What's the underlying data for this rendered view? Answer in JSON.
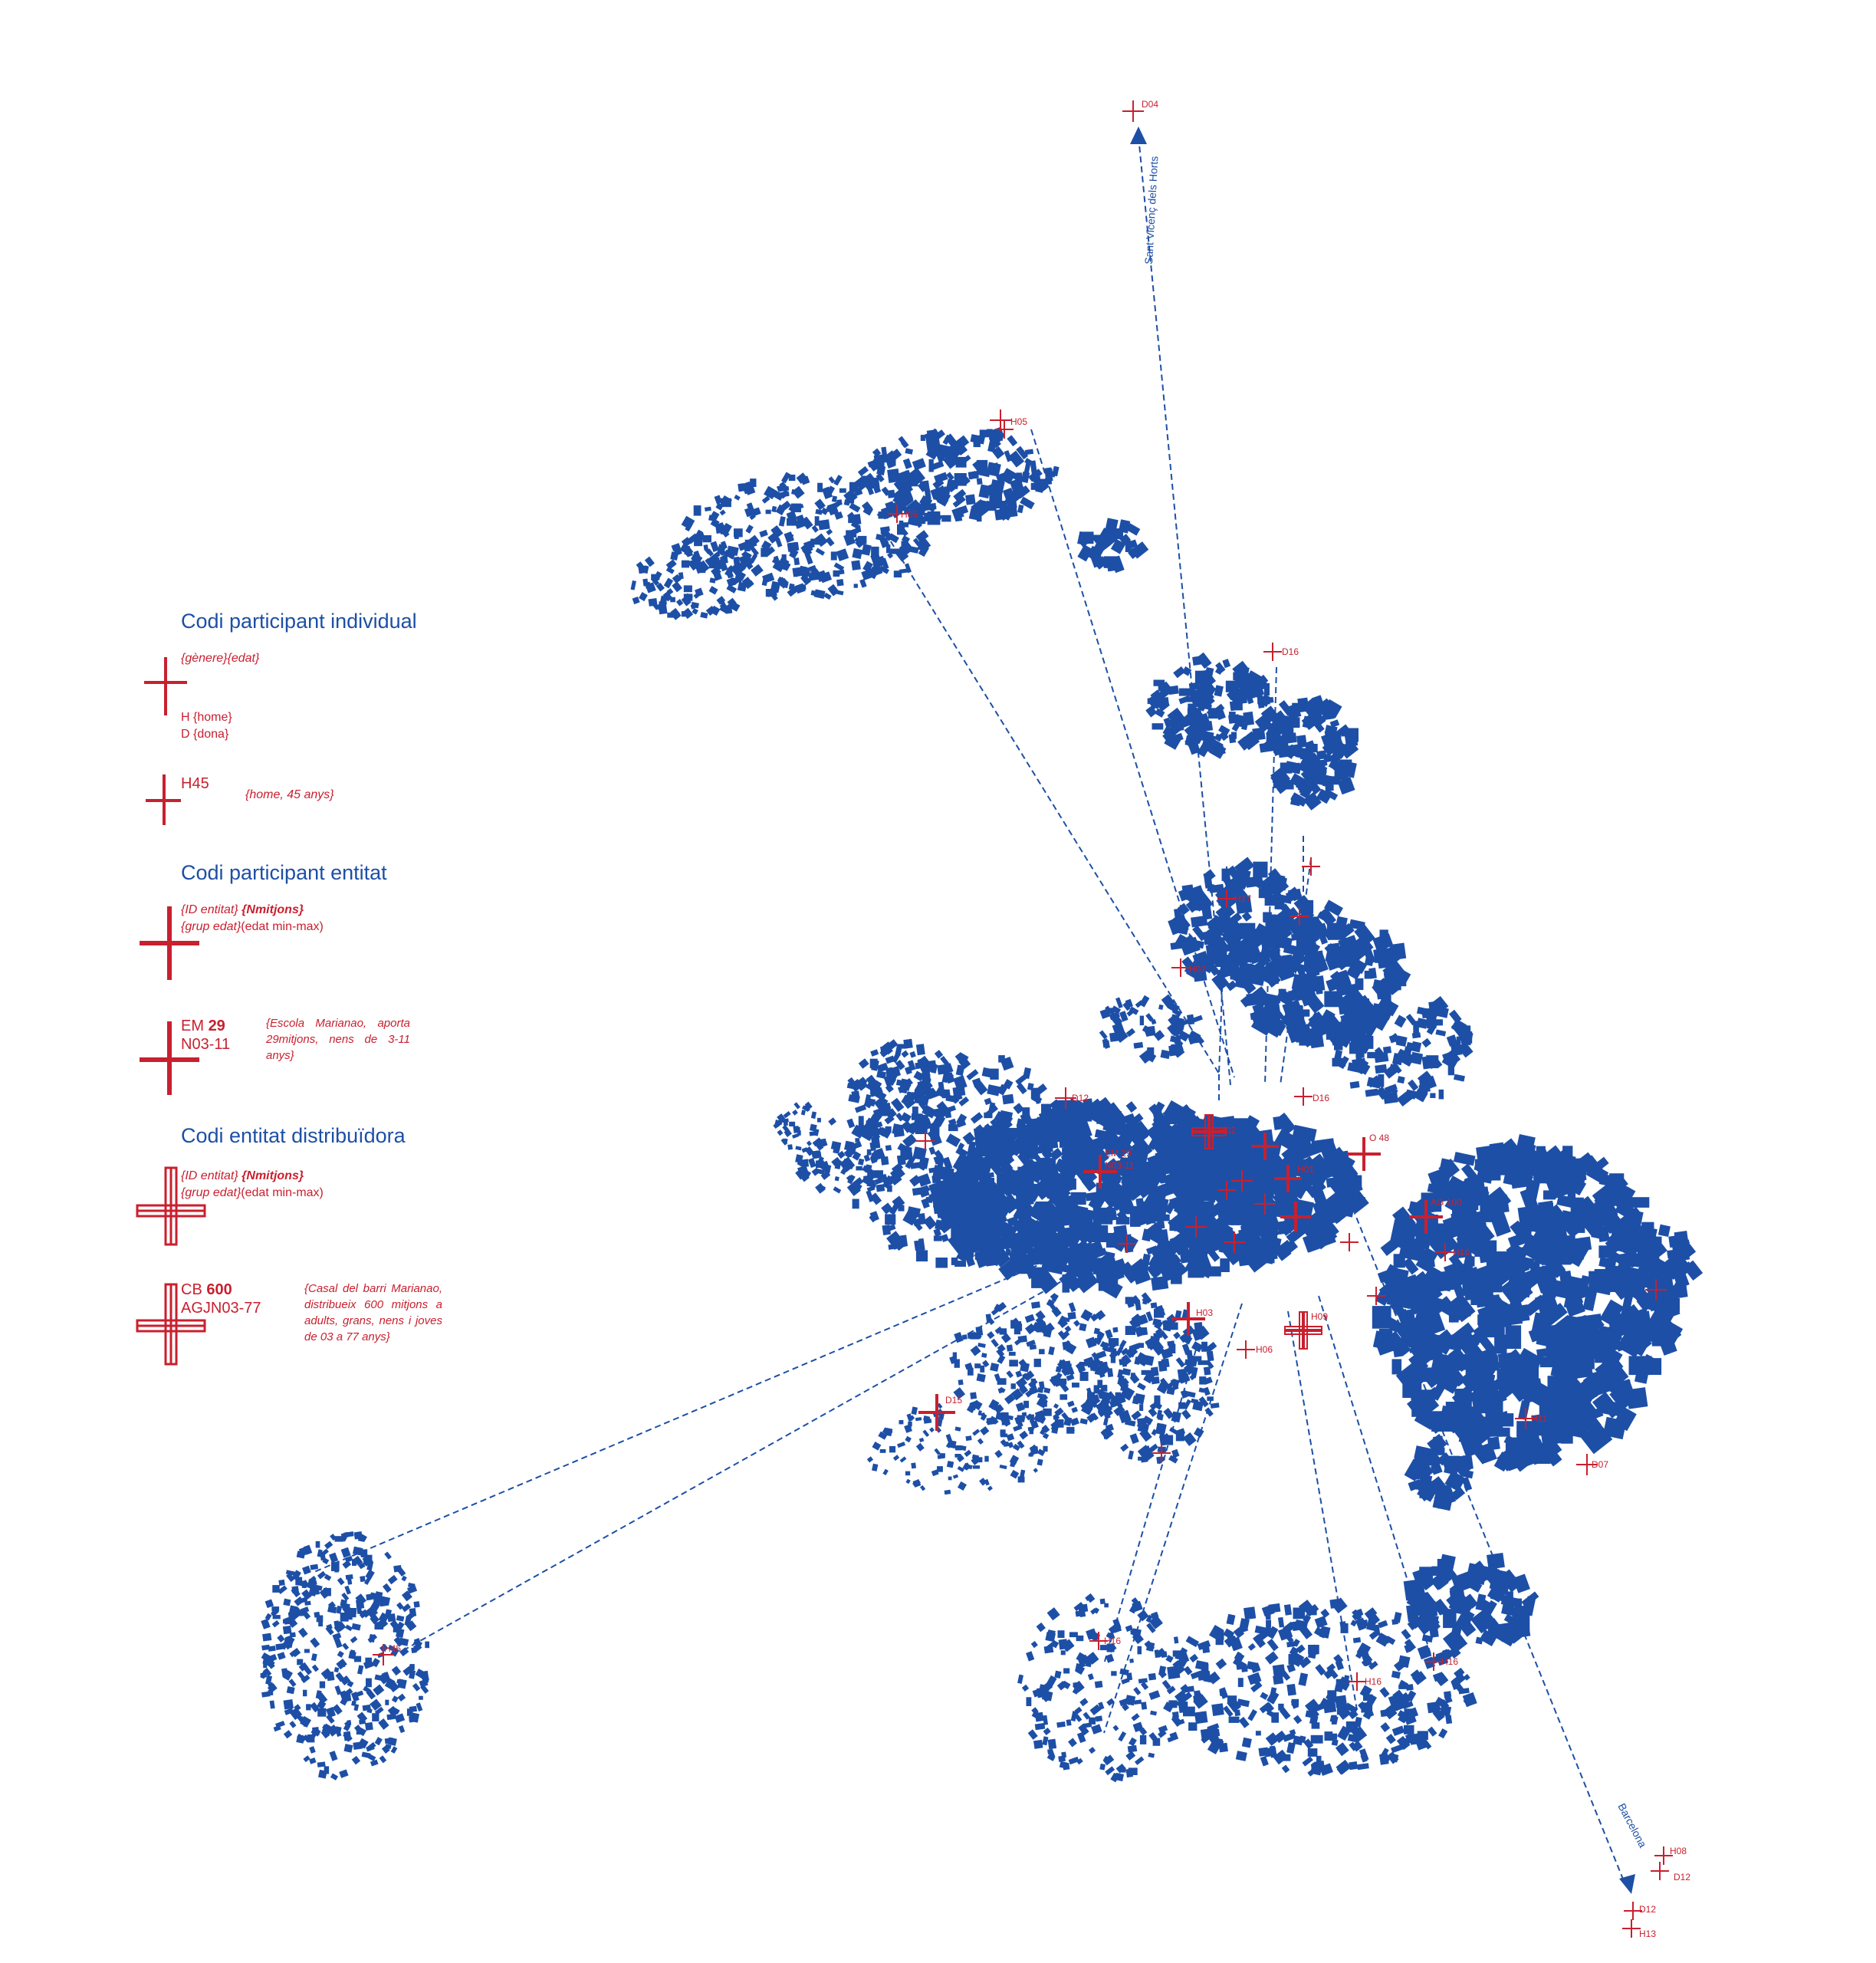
{
  "colors": {
    "buildings": "#1d4fa6",
    "markers": "#c8202f",
    "routes": "#1d4fa6"
  },
  "legend": {
    "individual": {
      "title": "Codi participant individual",
      "format_a": "{gènere}",
      "format_b": "{edat}",
      "line_h": "H {home}",
      "line_d": "D {dona}",
      "example_code": "H45",
      "example_note": "{home, 45 anys}"
    },
    "entity": {
      "title": "Codi participant entitat",
      "line1_a": "{ID entitat}",
      "line1_b": "{Nmitjons}",
      "line2_a": "{grup edat}",
      "line2_b": "(edat min-max)",
      "example_prefix": "EM",
      "example_num": "29",
      "example_range": "N03-11",
      "example_note": "{Escola Marianao, aporta 29mitjons, nens de 3-11 anys}"
    },
    "distributor": {
      "title": "Codi entitat distribuïdora",
      "line1_a": "{ID entitat}",
      "line1_b": "{Nmitjons}",
      "line2_a": "{grup edat}",
      "line2_b": "(edat min-max)",
      "example_prefix": "CB",
      "example_num": "600",
      "example_range": "AGJN03-77",
      "example_note": "{Casal del barri Marianao, distribueix 600 mitjons a adults, grans, nens i joves de 03 a 77 anys}"
    }
  },
  "routes": [
    {
      "name": "Sant Vicenç dels Horts",
      "code": "D04"
    },
    {
      "name": "Barcelona"
    }
  ],
  "markers": [
    "D04",
    "H05",
    "D16",
    "H07",
    "D12",
    "H17",
    "D16",
    "H08",
    "D12",
    "D12",
    "H13",
    "H16",
    "H16",
    "H45",
    "EM 29",
    "N03-11",
    "O 48",
    "AG 100",
    "H16",
    "H02",
    "H01",
    "H03",
    "H09",
    "D15",
    "H06",
    "H11",
    "D07"
  ]
}
